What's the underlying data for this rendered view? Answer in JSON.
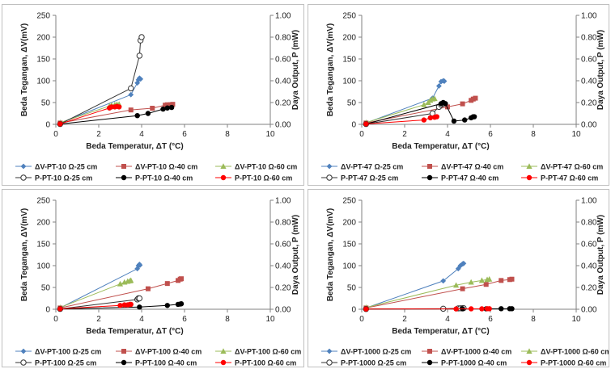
{
  "chart_data": [
    {
      "type": "scatter",
      "xlabel": "Beda Temperatur, ΔT (°C)",
      "ylabel": "Beda Tegangan, ΔV(mV)",
      "y2label": "Daya Output,  P  (mW)",
      "xlim": [
        0,
        10
      ],
      "ylim": [
        0,
        250
      ],
      "y2lim": [
        0.0,
        1.0
      ],
      "xticks": [
        "0",
        "2",
        "4",
        "6",
        "8",
        "10"
      ],
      "yticks": [
        "0",
        "50",
        "100",
        "150",
        "200",
        "250"
      ],
      "y2ticks": [
        "0.00",
        "0.20",
        "0.40",
        "0.60",
        "0.80",
        "1.00"
      ],
      "grid": false,
      "legend": "bottom",
      "series": [
        {
          "name": "ΔV-PT-10 Ω-25 cm",
          "axis": "left",
          "color": "#4f81bd",
          "marker": "diamond",
          "x": [
            0.2,
            3.5,
            3.8,
            3.85,
            3.9,
            3.95
          ],
          "y": [
            3,
            68,
            95,
            102,
            106,
            104
          ]
        },
        {
          "name": "ΔV-PT-10 Ω-40 cm",
          "axis": "left",
          "color": "#c0504d",
          "marker": "square",
          "x": [
            0.2,
            3.5,
            4.5,
            5.1,
            5.2,
            5.35,
            5.45
          ],
          "y": [
            3,
            33,
            37,
            44,
            45,
            45,
            46
          ]
        },
        {
          "name": "ΔV-PT-10 Ω-60 cm",
          "axis": "left",
          "color": "#9bbb59",
          "marker": "triangle",
          "x": [
            0.2,
            2.5,
            2.6,
            2.75,
            2.85,
            2.95
          ],
          "y": [
            4,
            42,
            44,
            45,
            46,
            46
          ]
        },
        {
          "name": "P-PT-10 Ω-25 cm",
          "axis": "right",
          "color": "#333333",
          "marker": "circle-open",
          "x": [
            0.2,
            3.5,
            3.9,
            3.95,
            4.0
          ],
          "y": [
            0.003,
            0.33,
            0.63,
            0.77,
            0.8
          ]
        },
        {
          "name": "P-PT-10 Ω-40 cm",
          "axis": "right",
          "color": "#000000",
          "marker": "circle",
          "x": [
            0.2,
            3.8,
            4.3,
            5.0,
            5.2,
            5.4
          ],
          "y": [
            0.003,
            0.08,
            0.1,
            0.14,
            0.15,
            0.155
          ]
        },
        {
          "name": "P-PT-10 Ω-60 cm",
          "axis": "right",
          "color": "#ff0000",
          "marker": "circle",
          "x": [
            0.2,
            2.5,
            2.6,
            2.75,
            2.85,
            2.95
          ],
          "y": [
            0.004,
            0.15,
            0.16,
            0.16,
            0.165,
            0.16
          ]
        }
      ]
    },
    {
      "type": "scatter",
      "xlabel": "Beda Temperatur, ΔT (°C)",
      "ylabel": "Beda Tegangan, ΔV(mV)",
      "y2label": "Daya Output,  P  (mW)",
      "xlim": [
        0,
        10
      ],
      "ylim": [
        0,
        250
      ],
      "y2lim": [
        0.0,
        1.0
      ],
      "xticks": [
        "0",
        "2",
        "4",
        "6",
        "8",
        "10"
      ],
      "yticks": [
        "0",
        "50",
        "100",
        "150",
        "200",
        "250"
      ],
      "y2ticks": [
        "0.00",
        "0.20",
        "0.40",
        "0.60",
        "0.80",
        "1.00"
      ],
      "grid": false,
      "legend": "bottom",
      "series": [
        {
          "name": "ΔV-PT-47 Ω-25 cm",
          "axis": "left",
          "color": "#4f81bd",
          "marker": "diamond",
          "x": [
            0.2,
            3.3,
            3.6,
            3.7,
            3.8,
            3.85
          ],
          "y": [
            3,
            60,
            88,
            98,
            100,
            99
          ]
        },
        {
          "name": "ΔV-PT-47 Ω-40 cm",
          "axis": "left",
          "color": "#c0504d",
          "marker": "square",
          "x": [
            0.2,
            4.0,
            4.7,
            5.1,
            5.2,
            5.3
          ],
          "y": [
            3,
            40,
            47,
            55,
            58,
            60
          ]
        },
        {
          "name": "ΔV-PT-47 Ω-60 cm",
          "axis": "left",
          "color": "#9bbb59",
          "marker": "triangle",
          "x": [
            0.2,
            2.9,
            3.1,
            3.2,
            3.3,
            3.4
          ],
          "y": [
            4,
            45,
            50,
            55,
            58,
            59
          ]
        },
        {
          "name": "P-PT-47 Ω-25 cm",
          "axis": "right",
          "color": "#333333",
          "marker": "circle-open",
          "x": [
            0.2,
            3.3,
            3.6,
            3.7,
            3.8
          ],
          "y": [
            0.003,
            0.1,
            0.16,
            0.18,
            0.19
          ]
        },
        {
          "name": "P-PT-47 Ω-40 cm",
          "axis": "right",
          "color": "#000000",
          "marker": "circle",
          "x": [
            0.2,
            3.7,
            3.8,
            3.9,
            4.3,
            4.8,
            5.1,
            5.2,
            5.25
          ],
          "y": [
            0.003,
            0.19,
            0.2,
            0.19,
            0.03,
            0.04,
            0.06,
            0.07,
            0.07
          ]
        },
        {
          "name": "P-PT-47 Ω-60 cm",
          "axis": "right",
          "color": "#ff0000",
          "marker": "circle",
          "x": [
            0.2,
            2.9,
            3.2,
            3.4,
            3.5
          ],
          "y": [
            0.004,
            0.04,
            0.06,
            0.065,
            0.07
          ]
        }
      ]
    },
    {
      "type": "scatter",
      "xlabel": "Beda Temperatur, ΔT (°C)",
      "ylabel": "Beda Tegangan, ΔV(mV)",
      "y2label": "Daya Output,  P  (mW)",
      "xlim": [
        0,
        10
      ],
      "ylim": [
        0,
        250
      ],
      "y2lim": [
        0.0,
        1.0
      ],
      "xticks": [
        "0",
        "2",
        "4",
        "6",
        "8",
        "10"
      ],
      "yticks": [
        "0",
        "50",
        "100",
        "150",
        "200",
        "250"
      ],
      "y2ticks": [
        "0.00",
        "0.20",
        "0.40",
        "0.60",
        "0.80",
        "1.00"
      ],
      "grid": false,
      "legend": "bottom",
      "series": [
        {
          "name": "ΔV-PT-100 Ω-25 cm",
          "axis": "left",
          "color": "#4f81bd",
          "marker": "diamond",
          "x": [
            0.2,
            3.8,
            3.85,
            3.9,
            3.92
          ],
          "y": [
            3,
            93,
            100,
            103,
            101
          ]
        },
        {
          "name": "ΔV-PT-100 Ω-40 cm",
          "axis": "left",
          "color": "#c0504d",
          "marker": "square",
          "x": [
            0.2,
            4.3,
            5.2,
            5.7,
            5.8,
            5.85
          ],
          "y": [
            3,
            47,
            59,
            66,
            69,
            70
          ]
        },
        {
          "name": "ΔV-PT-100 Ω-60 cm",
          "axis": "left",
          "color": "#9bbb59",
          "marker": "triangle",
          "x": [
            0.2,
            3.0,
            3.2,
            3.35,
            3.45,
            3.5
          ],
          "y": [
            4,
            58,
            62,
            64,
            65,
            66
          ]
        },
        {
          "name": "P-PT-100 Ω-25 cm",
          "axis": "right",
          "color": "#333333",
          "marker": "circle-open",
          "x": [
            0.2,
            3.8,
            3.85,
            3.9
          ],
          "y": [
            0.003,
            0.09,
            0.1,
            0.1
          ]
        },
        {
          "name": "P-PT-100 Ω-40 cm",
          "axis": "right",
          "color": "#000000",
          "marker": "circle",
          "x": [
            0.2,
            3.9,
            5.2,
            5.7,
            5.8,
            5.85
          ],
          "y": [
            0.003,
            0.02,
            0.035,
            0.045,
            0.048,
            0.05
          ]
        },
        {
          "name": "P-PT-100 Ω-60 cm",
          "axis": "right",
          "color": "#ff0000",
          "marker": "circle",
          "x": [
            0.2,
            3.0,
            3.2,
            3.35,
            3.45,
            3.5
          ],
          "y": [
            0.004,
            0.035,
            0.04,
            0.04,
            0.045,
            0.045
          ]
        }
      ]
    },
    {
      "type": "scatter",
      "xlabel": "Beda Temperatur, ΔT (°C)",
      "ylabel": "Beda Tegangan, ΔV(mV)",
      "y2label": "Daya Output,  P  (mW)",
      "xlim": [
        0,
        10
      ],
      "ylim": [
        0,
        250
      ],
      "y2lim": [
        0.0,
        1.0
      ],
      "xticks": [
        "0",
        "2",
        "4",
        "6",
        "8",
        "10"
      ],
      "yticks": [
        "0",
        "50",
        "100",
        "150",
        "200",
        "250"
      ],
      "y2ticks": [
        "0.00",
        "0.20",
        "0.40",
        "0.60",
        "0.80",
        "1.00"
      ],
      "grid": false,
      "legend": "bottom",
      "series": [
        {
          "name": "ΔV-PT-1000 Ω-25 cm",
          "axis": "left",
          "color": "#4f81bd",
          "marker": "diamond",
          "x": [
            0.2,
            3.8,
            4.5,
            4.6,
            4.7,
            4.75
          ],
          "y": [
            3,
            65,
            93,
            100,
            104,
            105
          ]
        },
        {
          "name": "ΔV-PT-1000 Ω-40 cm",
          "axis": "left",
          "color": "#c0504d",
          "marker": "square",
          "x": [
            0.2,
            4.7,
            5.8,
            6.5,
            6.9,
            7.0
          ],
          "y": [
            3,
            47,
            57,
            66,
            68,
            69
          ]
        },
        {
          "name": "ΔV-PT-1000 Ω-60 cm",
          "axis": "left",
          "color": "#9bbb59",
          "marker": "triangle",
          "x": [
            0.2,
            4.4,
            5.1,
            5.6,
            5.85,
            5.95
          ],
          "y": [
            4,
            55,
            62,
            66,
            68,
            69
          ]
        },
        {
          "name": "P-PT-1000 Ω-25 cm",
          "axis": "right",
          "color": "#333333",
          "marker": "circle-open",
          "x": [
            0.2,
            3.8,
            4.5,
            4.6,
            4.7,
            4.75
          ],
          "y": [
            0.002,
            0.005,
            0.008,
            0.009,
            0.01,
            0.01
          ]
        },
        {
          "name": "P-PT-1000 Ω-40 cm",
          "axis": "right",
          "color": "#000000",
          "marker": "circle",
          "x": [
            0.2,
            4.7,
            5.8,
            6.5,
            6.9,
            7.0
          ],
          "y": [
            0.002,
            0.004,
            0.004,
            0.005,
            0.005,
            0.005
          ]
        },
        {
          "name": "P-PT-1000 Ω-60 cm",
          "axis": "right",
          "color": "#ff0000",
          "marker": "circle",
          "x": [
            0.2,
            4.4,
            5.1,
            5.6,
            5.85,
            5.95
          ],
          "y": [
            0.002,
            0.003,
            0.004,
            0.004,
            0.005,
            0.005
          ]
        }
      ]
    }
  ]
}
